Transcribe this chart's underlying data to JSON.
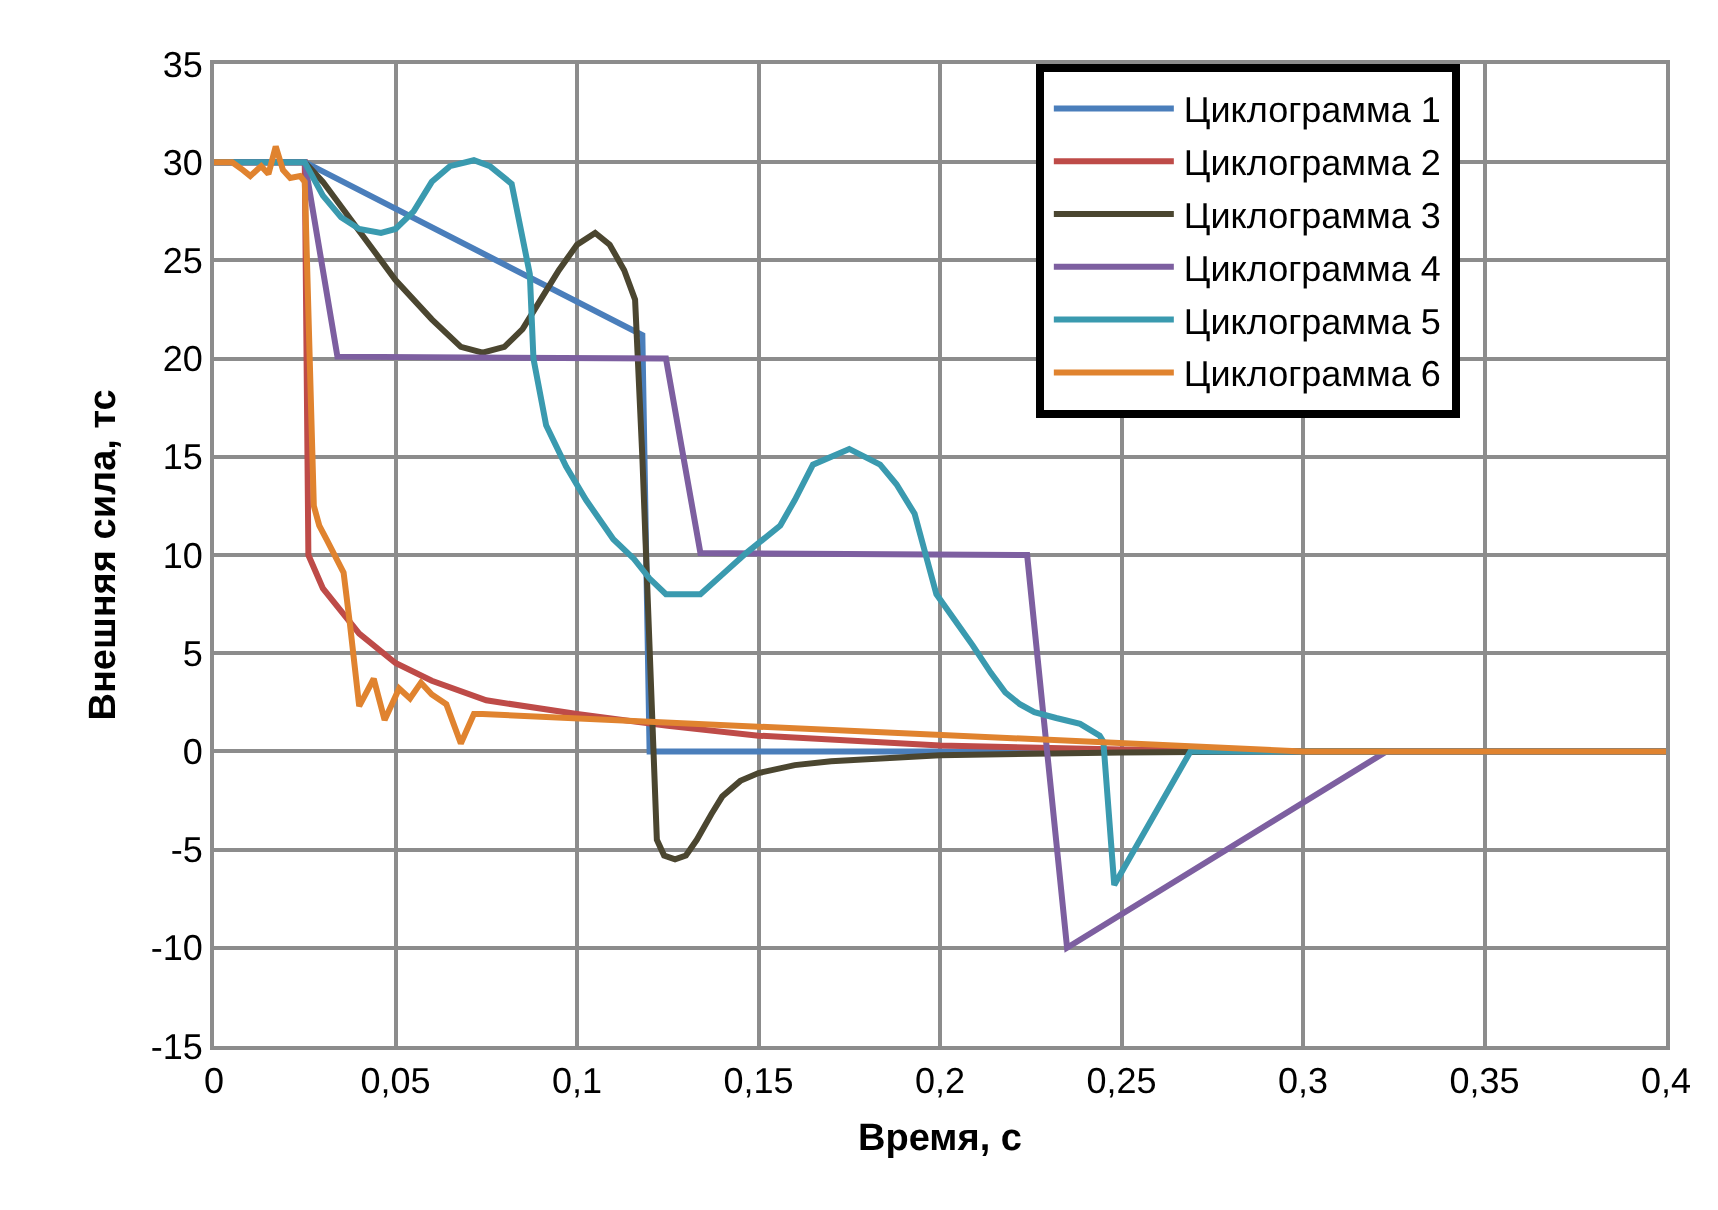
{
  "chart_data": {
    "type": "line",
    "xlabel": "Время, с",
    "ylabel": "Внешняя сила, тс",
    "xlim": [
      0,
      0.4
    ],
    "xticks": [
      0,
      {
        "value": 0.05,
        "label": "0,05"
      },
      {
        "value": 0.1,
        "label": "0,1"
      },
      {
        "value": 0.15,
        "label": "0,15"
      },
      {
        "value": 0.2,
        "label": "0,2"
      },
      {
        "value": 0.25,
        "label": "0,25"
      },
      {
        "value": 0.3,
        "label": "0,3"
      },
      {
        "value": 0.35,
        "label": "0,35"
      },
      {
        "value": 0.4,
        "label": "0,4"
      }
    ],
    "ylim": [
      -15,
      35
    ],
    "yticks": [
      -15,
      -10,
      -5,
      0,
      5,
      10,
      15,
      20,
      25,
      30,
      35
    ],
    "grid": true,
    "legend": "top right",
    "marker": "none",
    "line_style": "solid",
    "series": [
      {
        "name": "Циклограмма 1",
        "color": "#4a7ebb",
        "x": [
          0,
          0.025,
          0.118,
          0.12,
          0.4
        ],
        "values": [
          30,
          30,
          21.2,
          0,
          0
        ]
      },
      {
        "name": "Циклограмма 2",
        "color": "#be4b48",
        "x": [
          0,
          0.025,
          0.026,
          0.03,
          0.04,
          0.05,
          0.06,
          0.075,
          0.1,
          0.125,
          0.15,
          0.2,
          0.25,
          0.3,
          0.4
        ],
        "values": [
          30,
          30,
          10,
          8.3,
          6,
          4.5,
          3.6,
          2.6,
          1.9,
          1.3,
          0.8,
          0.3,
          0.1,
          0,
          0
        ]
      },
      {
        "name": "Циклограмма 3",
        "color": "#4b4630",
        "x": [
          0,
          0.025,
          0.03,
          0.04,
          0.05,
          0.06,
          0.068,
          0.074,
          0.08,
          0.085,
          0.09,
          0.095,
          0.1,
          0.105,
          0.109,
          0.113,
          0.116,
          0.118,
          0.122,
          0.124,
          0.127,
          0.13,
          0.133,
          0.137,
          0.14,
          0.145,
          0.15,
          0.16,
          0.17,
          0.2,
          0.25,
          0.3,
          0.4
        ],
        "values": [
          30,
          30,
          29,
          26.5,
          24,
          22,
          20.6,
          20.3,
          20.6,
          21.5,
          23,
          24.5,
          25.8,
          26.4,
          25.8,
          24.5,
          23,
          15,
          -4.5,
          -5.3,
          -5.5,
          -5.3,
          -4.5,
          -3.2,
          -2.3,
          -1.5,
          -1.1,
          -0.7,
          -0.5,
          -0.2,
          -0.05,
          0,
          0
        ]
      },
      {
        "name": "Циклограмма 4",
        "color": "#7d5fa0",
        "x": [
          0,
          0.025,
          0.034,
          0.1245,
          0.134,
          0.224,
          0.235,
          0.323,
          0.4
        ],
        "values": [
          30,
          30,
          20.1,
          20,
          10.1,
          10,
          -10,
          0,
          0
        ]
      },
      {
        "name": "Циклограмма 5",
        "color": "#3a9aaf",
        "x": [
          0,
          0.025,
          0.03,
          0.035,
          0.04,
          0.046,
          0.05,
          0.055,
          0.06,
          0.065,
          0.0716,
          0.076,
          0.08,
          0.082,
          0.087,
          0.088,
          0.0915,
          0.097,
          0.1025,
          0.11,
          0.1157,
          0.12,
          0.1245,
          0.134,
          0.14,
          0.1466,
          0.156,
          0.16,
          0.165,
          0.175,
          0.1835,
          0.188,
          0.193,
          0.199,
          0.204,
          0.209,
          0.214,
          0.218,
          0.222,
          0.226,
          0.232,
          0.2386,
          0.244,
          0.245,
          0.248,
          0.269,
          0.4
        ],
        "values": [
          30,
          30,
          28.3,
          27.2,
          26.6,
          26.4,
          26.6,
          27.5,
          29,
          29.8,
          30.1,
          29.8,
          29.2,
          28.9,
          24.3,
          20,
          16.6,
          14.5,
          12.8,
          10.8,
          9.8,
          8.8,
          8,
          8,
          9,
          10.1,
          11.5,
          12.8,
          14.6,
          15.4,
          14.6,
          13.6,
          12.1,
          8,
          6.7,
          5.4,
          4,
          3,
          2.4,
          2,
          1.7,
          1.4,
          0.8,
          0.5,
          -6.8,
          0,
          0
        ]
      },
      {
        "name": "Циклограмма 6",
        "color": "#e0832f",
        "x": [
          0,
          0.005,
          0.008,
          0.01,
          0.013,
          0.015,
          0.017,
          0.019,
          0.021,
          0.0237,
          0.025,
          0.0275,
          0.029,
          0.031,
          0.0357,
          0.0375,
          0.04,
          0.044,
          0.047,
          0.051,
          0.054,
          0.057,
          0.06,
          0.064,
          0.068,
          0.0716,
          0.074,
          0.3,
          0.4
        ],
        "values": [
          30,
          30,
          29.6,
          29.3,
          29.8,
          29.4,
          30.8,
          29.6,
          29.2,
          29.3,
          29.0,
          12.5,
          11.5,
          10.8,
          9.1,
          6.4,
          2.3,
          3.7,
          1.6,
          3.2,
          2.7,
          3.5,
          2.9,
          2.4,
          0.4,
          1.9,
          1.9,
          0,
          0
        ]
      }
    ]
  }
}
